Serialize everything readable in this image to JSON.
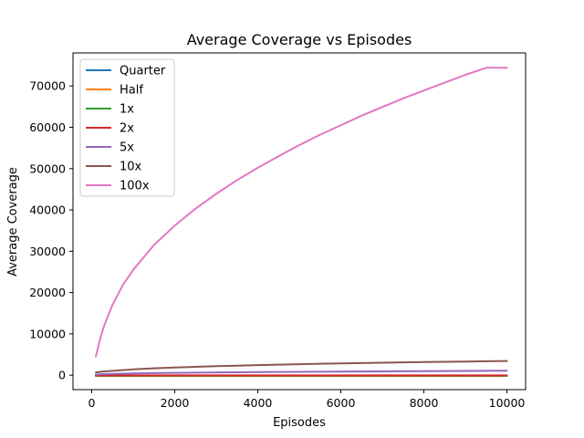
{
  "chart_data": {
    "type": "line",
    "title": "Average Coverage vs Episodes",
    "xlabel": "Episodes",
    "ylabel": "Average Coverage",
    "xlim": [
      -450,
      10450
    ],
    "ylim": [
      -3500,
      78000
    ],
    "xticks": [
      0,
      2000,
      4000,
      6000,
      8000,
      10000
    ],
    "yticks": [
      0,
      10000,
      20000,
      30000,
      40000,
      50000,
      60000,
      70000
    ],
    "grid": false,
    "legend_position": "upper-left",
    "x": [
      100,
      200,
      300,
      500,
      750,
      1000,
      1500,
      2000,
      2500,
      3000,
      3500,
      4000,
      4500,
      5000,
      5500,
      6000,
      6500,
      7000,
      7500,
      8000,
      8500,
      9000,
      9500,
      10000
    ],
    "series": [
      {
        "name": "Quarter",
        "color": "#1f77b4",
        "values": [
          -200,
          -200,
          -200,
          -200,
          -200,
          -200,
          -200,
          -200,
          -200,
          -200,
          -200,
          -200,
          -200,
          -200,
          -200,
          -200,
          -200,
          -200,
          -200,
          -200,
          -200,
          -200,
          -200,
          -200
        ]
      },
      {
        "name": "Half",
        "color": "#ff7f0e",
        "values": [
          -150,
          -150,
          -150,
          -150,
          -150,
          -150,
          -150,
          -150,
          -150,
          -150,
          -150,
          -150,
          -150,
          -150,
          -150,
          -150,
          -150,
          -150,
          -150,
          -150,
          -150,
          -150,
          -150,
          -150
        ]
      },
      {
        "name": "1x",
        "color": "#2ca02c",
        "values": [
          -100,
          -100,
          -100,
          -100,
          -100,
          -100,
          -100,
          -100,
          -100,
          -100,
          -100,
          -100,
          -100,
          -100,
          -100,
          -100,
          -100,
          -100,
          -100,
          -100,
          -100,
          -100,
          -100,
          -100
        ]
      },
      {
        "name": "2x",
        "color": "#d62728",
        "values": [
          -50,
          -50,
          -50,
          -50,
          -50,
          -50,
          -50,
          -50,
          -50,
          -50,
          -50,
          -50,
          -50,
          -50,
          -50,
          -50,
          -50,
          -50,
          -50,
          -50,
          -50,
          -50,
          -50,
          -50
        ]
      },
      {
        "name": "5x",
        "color": "#9467bd",
        "values": [
          150,
          210,
          250,
          310,
          370,
          420,
          500,
          560,
          610,
          660,
          700,
          740,
          780,
          810,
          840,
          870,
          900,
          930,
          950,
          980,
          1000,
          1030,
          1050,
          1080
        ]
      },
      {
        "name": "10x",
        "color": "#8c564b",
        "values": [
          680,
          800,
          900,
          1050,
          1220,
          1400,
          1650,
          1850,
          2020,
          2180,
          2310,
          2440,
          2550,
          2660,
          2760,
          2850,
          2940,
          3020,
          3100,
          3170,
          3240,
          3300,
          3370,
          3420
        ]
      },
      {
        "name": "100x",
        "color": "#e377c2",
        "values": [
          4500,
          8700,
          12000,
          17000,
          21800,
          25500,
          31500,
          36200,
          40300,
          43900,
          47200,
          50200,
          53000,
          55700,
          58200,
          60500,
          62800,
          64900,
          67000,
          68900,
          70800,
          72700,
          74400,
          74400
        ]
      }
    ]
  }
}
